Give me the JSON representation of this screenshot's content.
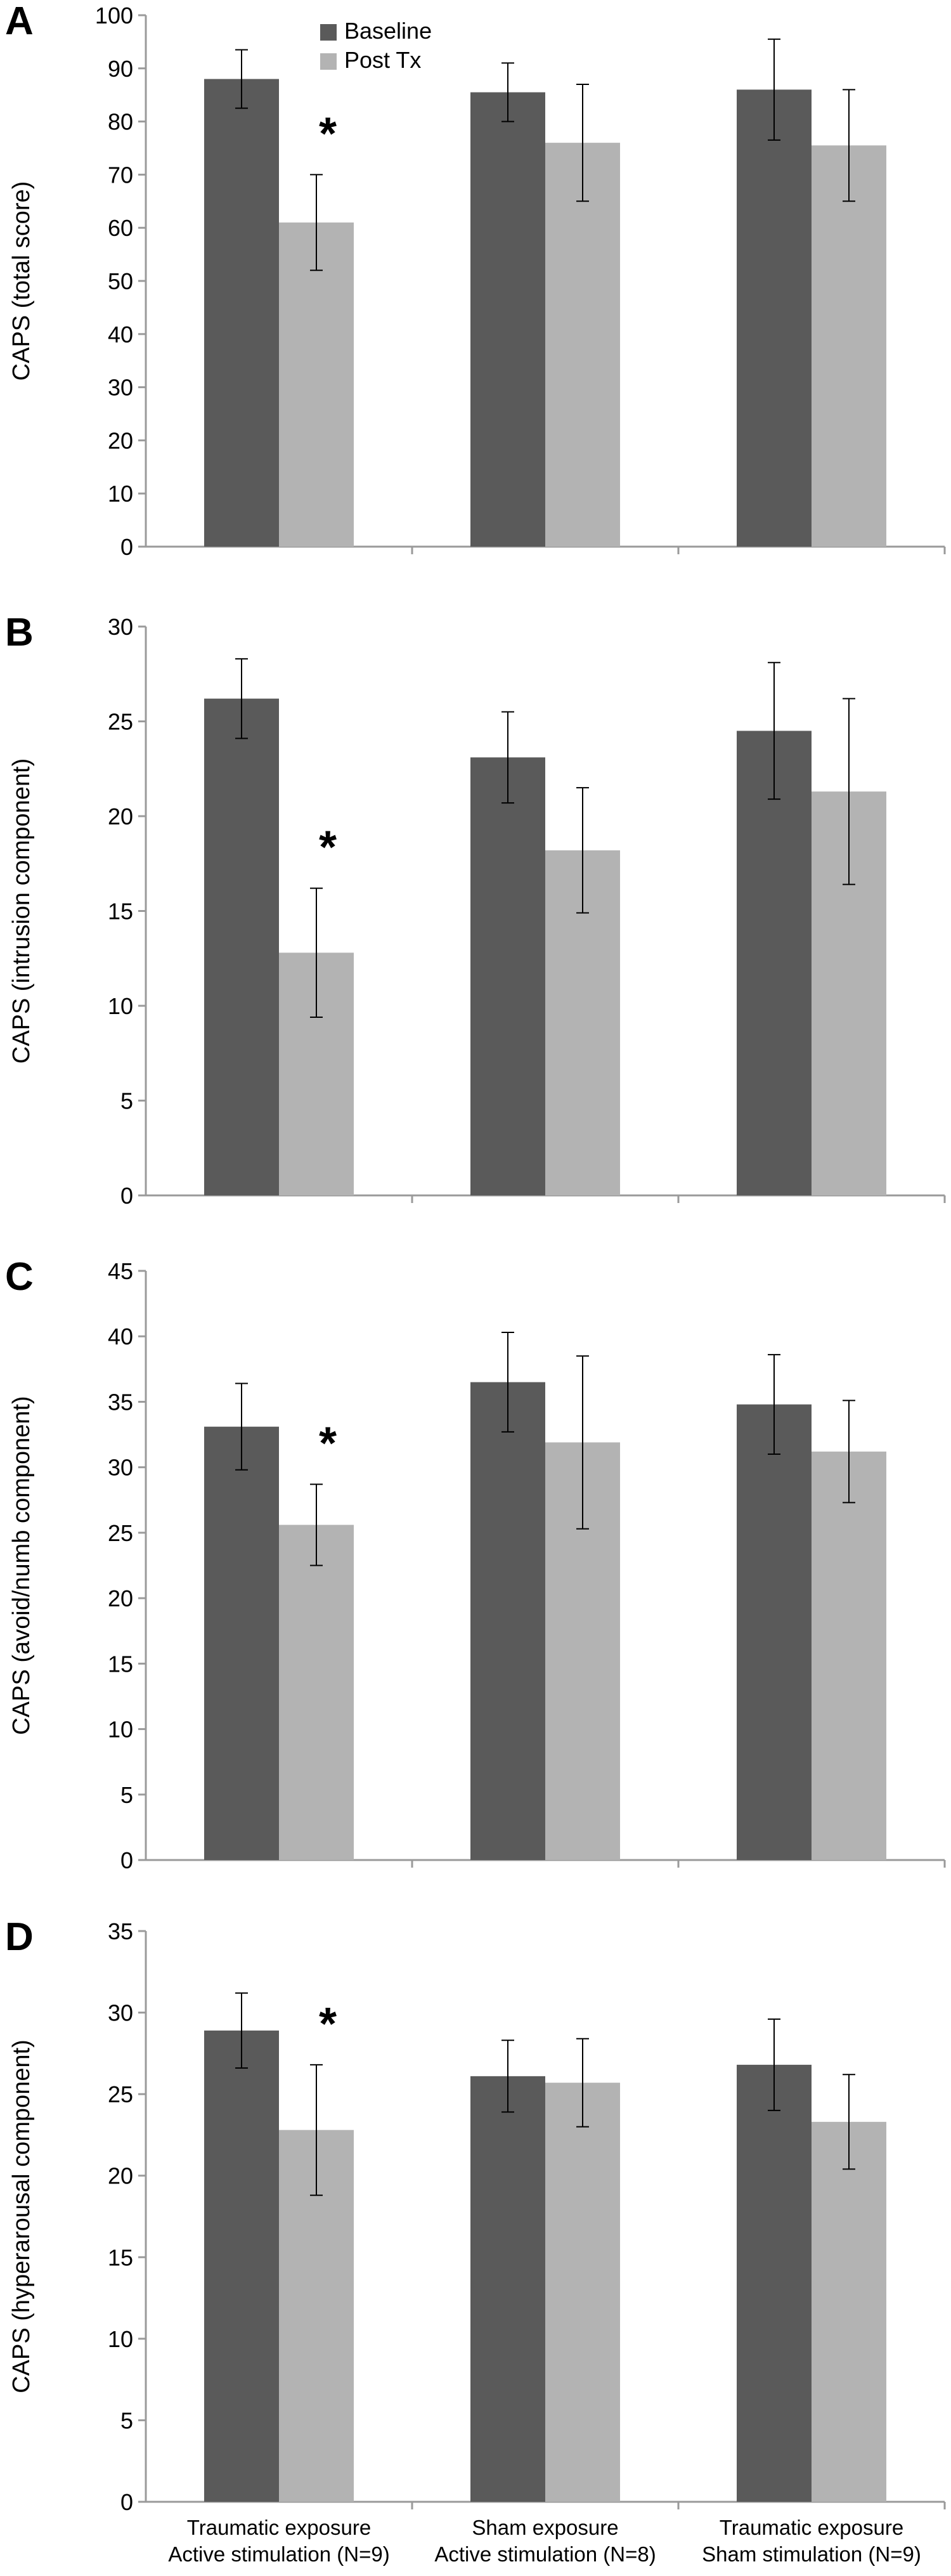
{
  "colors": {
    "baseline": "#5a5a5a",
    "post_tx": "#b3b3b3",
    "axis": "#9a9a9a",
    "error": "#000000"
  },
  "legend": [
    "Baseline",
    "Post Tx"
  ],
  "categories": [
    [
      "Traumatic exposure",
      "Active stimulation (N=9)"
    ],
    [
      "Sham exposure",
      "Active stimulation (N=8)"
    ],
    [
      "Traumatic exposure",
      "Sham stimulation (N=9)"
    ]
  ],
  "chart_data": [
    {
      "type": "bar",
      "panel": "A",
      "ylabel": "CAPS (total score)",
      "ylim": [
        0,
        100
      ],
      "ystep": 10,
      "series": [
        {
          "name": "Baseline",
          "values": [
            88,
            85.5,
            86
          ],
          "error": [
            5.5,
            5.5,
            9.5
          ]
        },
        {
          "name": "Post Tx",
          "values": [
            61,
            76,
            75.5
          ],
          "error": [
            9,
            11,
            10.5
          ]
        }
      ],
      "significance": [
        {
          "category": 0,
          "label": "*"
        }
      ]
    },
    {
      "type": "bar",
      "panel": "B",
      "ylabel": "CAPS (intrusion component)",
      "ylim": [
        0,
        30
      ],
      "ystep": 5,
      "series": [
        {
          "name": "Baseline",
          "values": [
            26.2,
            23.1,
            24.5
          ],
          "error": [
            2.1,
            2.4,
            3.6
          ]
        },
        {
          "name": "Post Tx",
          "values": [
            12.8,
            18.2,
            21.3
          ],
          "error": [
            3.4,
            3.3,
            4.9
          ]
        }
      ],
      "significance": [
        {
          "category": 0,
          "label": "*"
        }
      ]
    },
    {
      "type": "bar",
      "panel": "C",
      "ylabel": "CAPS (avoid/numb component)",
      "ylim": [
        0,
        45
      ],
      "ystep": 5,
      "series": [
        {
          "name": "Baseline",
          "values": [
            33.1,
            36.5,
            34.8
          ],
          "error": [
            3.3,
            3.8,
            3.8
          ]
        },
        {
          "name": "Post Tx",
          "values": [
            25.6,
            31.9,
            31.2
          ],
          "error": [
            3.1,
            6.6,
            3.9
          ]
        }
      ],
      "significance": [
        {
          "category": 0,
          "label": "*"
        }
      ]
    },
    {
      "type": "bar",
      "panel": "D",
      "ylabel": "CAPS (hyperarousal component)",
      "ylim": [
        0,
        35
      ],
      "ystep": 5,
      "series": [
        {
          "name": "Baseline",
          "values": [
            28.9,
            26.1,
            26.8
          ],
          "error": [
            2.3,
            2.2,
            2.8
          ]
        },
        {
          "name": "Post Tx",
          "values": [
            22.8,
            25.7,
            23.3
          ],
          "error": [
            4.0,
            2.7,
            2.9
          ]
        }
      ],
      "significance": [
        {
          "category": 0,
          "label": "*"
        }
      ]
    }
  ]
}
